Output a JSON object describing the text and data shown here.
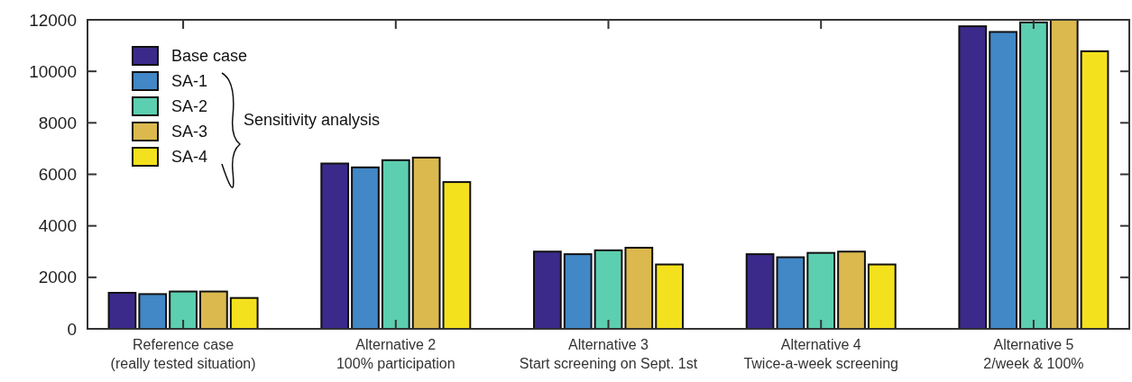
{
  "chart_data": {
    "type": "bar",
    "categories": [
      "Reference case\n(really tested situation)",
      "Alternative 2\n100% participation",
      "Alternative 3\nStart screening on Sept. 1st",
      "Alternative 4\nTwice-a-week screening",
      "Alternative 5\n2/week & 100%"
    ],
    "series": [
      {
        "name": "Base case",
        "color": "#3b2a8a",
        "values": [
          1400,
          6420,
          3000,
          2900,
          11750
        ]
      },
      {
        "name": "SA-1",
        "color": "#4287c6",
        "values": [
          1350,
          6270,
          2900,
          2780,
          11530
        ]
      },
      {
        "name": "SA-2",
        "color": "#5ccfb0",
        "values": [
          1450,
          6550,
          3050,
          2950,
          11900
        ]
      },
      {
        "name": "SA-3",
        "color": "#dbb94e",
        "values": [
          1450,
          6650,
          3150,
          3000,
          12000
        ]
      },
      {
        "name": "SA-4",
        "color": "#f4e11d",
        "values": [
          1200,
          5700,
          2500,
          2500,
          10780
        ]
      }
    ],
    "ylim": [
      0,
      12000
    ],
    "yticks": [
      0,
      2000,
      4000,
      6000,
      8000,
      10000,
      12000
    ],
    "legend": "top left",
    "grid": false,
    "annotations": [
      "Sensitivity analysis"
    ]
  }
}
